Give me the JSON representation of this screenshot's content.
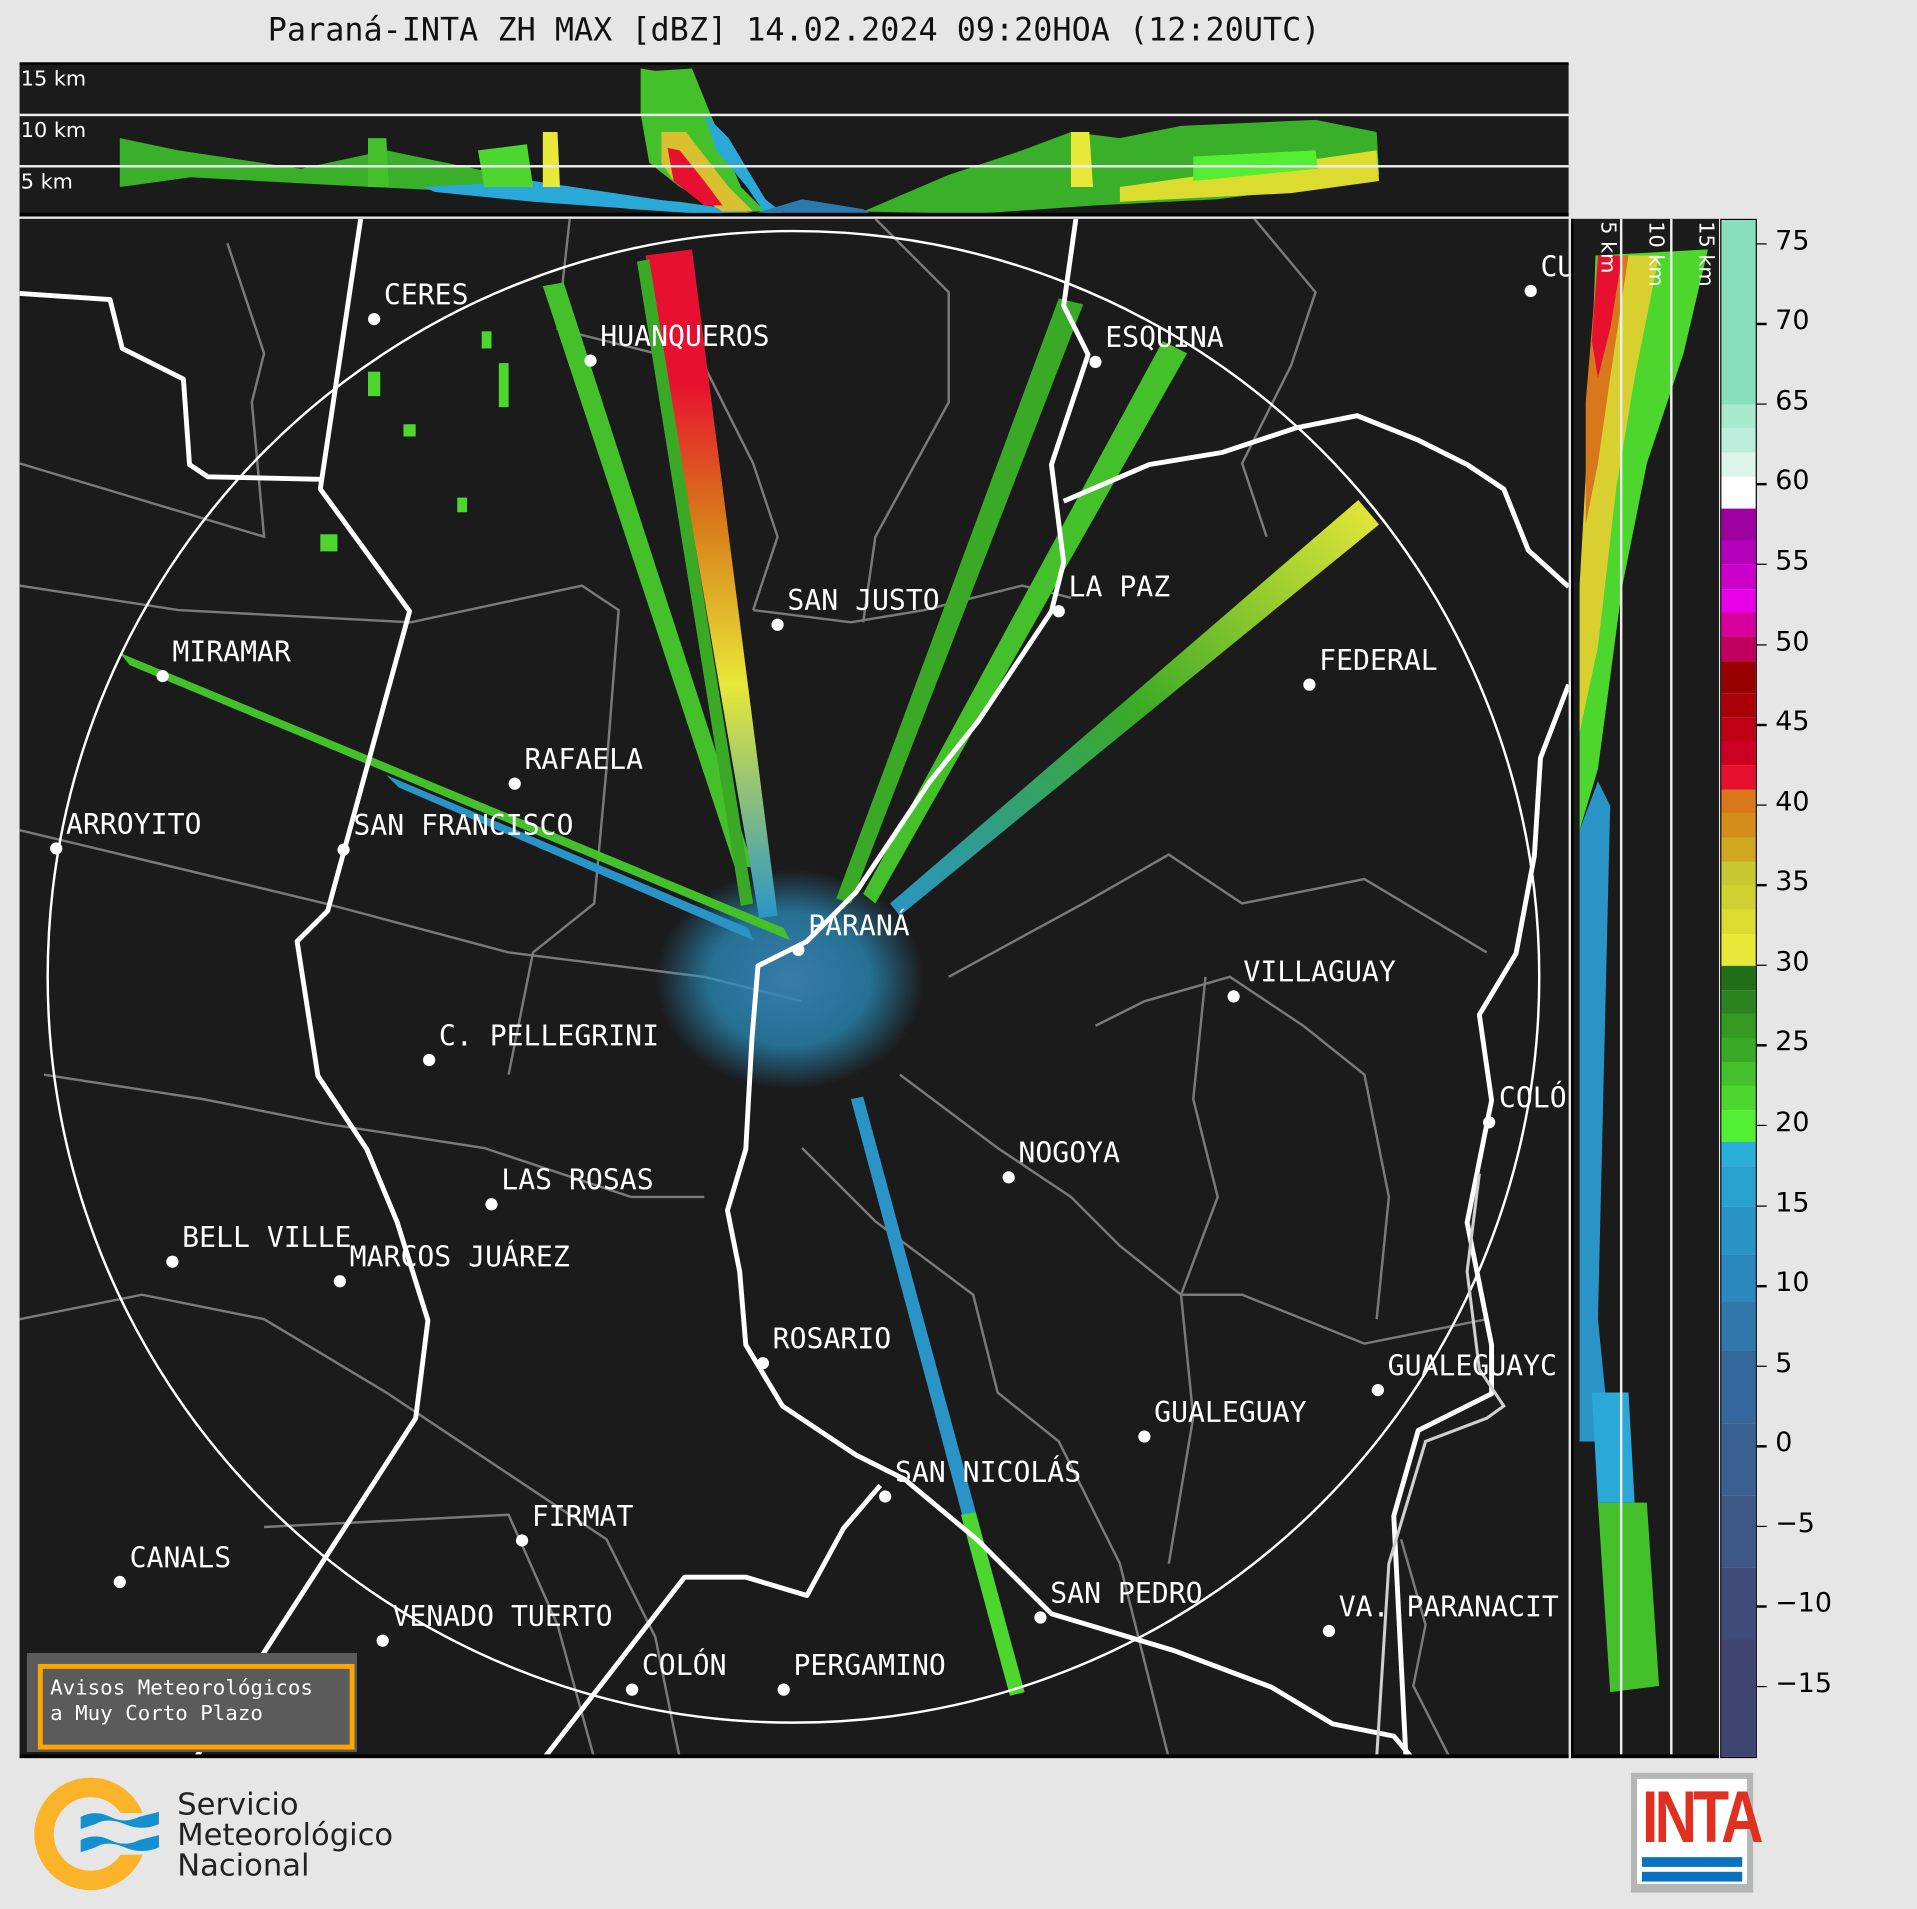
{
  "title": "Paraná-INTA ZH MAX [dBZ] 14.02.2024 09:20HOA (12:20UTC)",
  "top_cross_section": {
    "height_labels": [
      "15 km",
      "10 km",
      "5 km"
    ]
  },
  "side_cross_section": {
    "height_labels": [
      "5 km",
      "10 km",
      "15 km"
    ]
  },
  "map": {
    "cities": [
      "CERES",
      "HUANQUEROS",
      "ESQUINA",
      "CU",
      "SAN JUSTO",
      "LA PAZ",
      "MIRAMAR",
      "FEDERAL",
      "RAFAELA",
      "ARROYITO",
      "SAN FRANCISCO",
      "PARANÁ",
      "VILLAGUAY",
      "C. PELLEGRINI",
      "COLÓ",
      "NOGOYA",
      "LAS ROSAS",
      "BELL VILLE",
      "MARCOS JUÁREZ",
      "ROSARIO",
      "GUALEGUAYC",
      "GUALEGUAY",
      "SAN NICOLÁS",
      "FIRMAT",
      "CANALS",
      "SAN PEDRO",
      "VA. PARANACIT",
      "VENADO TUERTO",
      "COLÓN",
      "PERGAMINO"
    ],
    "notice": {
      "line1": "Avisos Meteorológicos",
      "line2": "a Muy Corto Plazo"
    },
    "range_ring": true
  },
  "colorbar": {
    "range": [
      -19.5,
      76.5
    ],
    "ticks": [
      "75",
      "70",
      "65",
      "60",
      "55",
      "50",
      "45",
      "40",
      "35",
      "30",
      "25",
      "20",
      "15",
      "10",
      "5",
      "0",
      "−5",
      "−10",
      "−15"
    ],
    "tick_values": [
      75,
      70,
      65,
      60,
      55,
      50,
      45,
      40,
      35,
      30,
      25,
      20,
      15,
      10,
      5,
      0,
      -5,
      -10,
      -15
    ],
    "levels": [
      {
        "from": 65,
        "to": 76.5,
        "color": "#88dfbf"
      },
      {
        "from": 63.5,
        "to": 65,
        "color": "#a8eacf"
      },
      {
        "from": 62,
        "to": 63.5,
        "color": "#bdeedd"
      },
      {
        "from": 60.5,
        "to": 62,
        "color": "#dcf5eb"
      },
      {
        "from": 58.5,
        "to": 60.5,
        "color": "#ffffff"
      },
      {
        "from": 56.5,
        "to": 58.5,
        "color": "#9c00a0"
      },
      {
        "from": 55,
        "to": 56.5,
        "color": "#b400b8"
      },
      {
        "from": 53.5,
        "to": 55,
        "color": "#cc00cc"
      },
      {
        "from": 52,
        "to": 53.5,
        "color": "#e800e8"
      },
      {
        "from": 50.5,
        "to": 52,
        "color": "#d8009a"
      },
      {
        "from": 49,
        "to": 50.5,
        "color": "#c0005c"
      },
      {
        "from": 47,
        "to": 49,
        "color": "#980000"
      },
      {
        "from": 45.5,
        "to": 47,
        "color": "#aa0008"
      },
      {
        "from": 44,
        "to": 45.5,
        "color": "#c00014"
      },
      {
        "from": 42.5,
        "to": 44,
        "color": "#cc0022"
      },
      {
        "from": 41,
        "to": 42.5,
        "color": "#e81030"
      },
      {
        "from": 39.5,
        "to": 41,
        "color": "#d8781a"
      },
      {
        "from": 38,
        "to": 39.5,
        "color": "#d48c1a"
      },
      {
        "from": 36.5,
        "to": 38,
        "color": "#d0a820"
      },
      {
        "from": 35,
        "to": 36.5,
        "color": "#c8c830"
      },
      {
        "from": 33.5,
        "to": 35,
        "color": "#d0d030"
      },
      {
        "from": 32,
        "to": 33.5,
        "color": "#dcdc30"
      },
      {
        "from": 30,
        "to": 32,
        "color": "#e8e838"
      },
      {
        "from": 28.5,
        "to": 30,
        "color": "#226f1a"
      },
      {
        "from": 27,
        "to": 28.5,
        "color": "#2a831e"
      },
      {
        "from": 25.5,
        "to": 27,
        "color": "#349a22"
      },
      {
        "from": 24,
        "to": 25.5,
        "color": "#3aaa26"
      },
      {
        "from": 22.5,
        "to": 24,
        "color": "#44c02a"
      },
      {
        "from": 21,
        "to": 22.5,
        "color": "#4cd62e"
      },
      {
        "from": 19,
        "to": 21,
        "color": "#52ee32"
      },
      {
        "from": 17.5,
        "to": 19,
        "color": "#2ab0d8"
      },
      {
        "from": 15,
        "to": 17.5,
        "color": "#28a0d0"
      },
      {
        "from": 12,
        "to": 15,
        "color": "#2894c6"
      },
      {
        "from": 9,
        "to": 12,
        "color": "#2c88bc"
      },
      {
        "from": 6,
        "to": 9,
        "color": "#3078ac"
      },
      {
        "from": 1.5,
        "to": 6,
        "color": "#34689c"
      },
      {
        "from": -3,
        "to": 1.5,
        "color": "#3a6092"
      },
      {
        "from": -7.5,
        "to": -3,
        "color": "#3e5888"
      },
      {
        "from": -12,
        "to": -7.5,
        "color": "#3f4c7a"
      },
      {
        "from": -19.5,
        "to": -12,
        "color": "#404470"
      }
    ]
  },
  "logos": {
    "smn": {
      "lines": [
        "Servicio",
        "Meteorológico",
        "Nacional"
      ]
    },
    "inta": {
      "text": "INTA"
    }
  }
}
